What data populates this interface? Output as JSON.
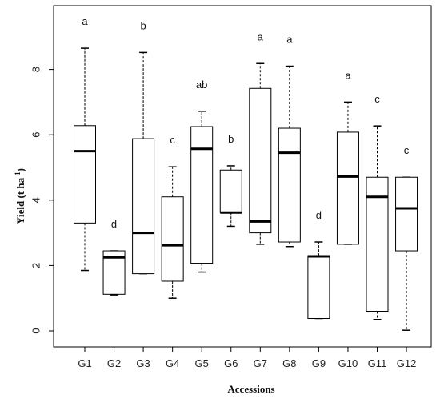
{
  "chart_data": {
    "type": "boxplot",
    "xlabel": "Accessions",
    "ylabel": "Yield (t ha",
    "ylabel_superscript": "-1",
    "ylabel_suffix": ")",
    "ylim": [
      0,
      9.5
    ],
    "yticks": [
      0,
      2,
      4,
      6,
      8
    ],
    "grid": false,
    "categories": [
      "G1",
      "G2",
      "G3",
      "G4",
      "G5",
      "G6",
      "G7",
      "G8",
      "G9",
      "G10",
      "G11",
      "G12"
    ],
    "boxes": [
      {
        "min": 1.85,
        "q1": 3.3,
        "median": 5.5,
        "q3": 6.28,
        "max": 8.65,
        "letter": "a"
      },
      {
        "min": 1.1,
        "q1": 1.12,
        "median": 2.25,
        "q3": 2.45,
        "max": 2.45,
        "letter": "d"
      },
      {
        "min": 1.75,
        "q1": 1.75,
        "median": 3.0,
        "q3": 5.88,
        "max": 8.52,
        "letter": "b"
      },
      {
        "min": 1.0,
        "q1": 1.52,
        "median": 2.62,
        "q3": 4.1,
        "max": 5.02,
        "letter": "c"
      },
      {
        "min": 1.8,
        "q1": 2.07,
        "median": 5.57,
        "q3": 6.25,
        "max": 6.72,
        "letter": "ab"
      },
      {
        "min": 3.2,
        "q1": 3.62,
        "median": 3.62,
        "q3": 4.92,
        "max": 5.05,
        "letter": "b"
      },
      {
        "min": 2.65,
        "q1": 3.0,
        "median": 3.35,
        "q3": 7.42,
        "max": 8.18,
        "letter": "a"
      },
      {
        "min": 2.58,
        "q1": 2.72,
        "median": 5.45,
        "q3": 6.2,
        "max": 8.1,
        "letter": "a"
      },
      {
        "min": 0.38,
        "q1": 0.38,
        "median": 2.28,
        "q3": 2.3,
        "max": 2.72,
        "letter": "d"
      },
      {
        "min": 2.65,
        "q1": 2.65,
        "median": 4.72,
        "q3": 6.08,
        "max": 7.0,
        "letter": "a"
      },
      {
        "min": 0.35,
        "q1": 0.6,
        "median": 4.1,
        "q3": 4.7,
        "max": 6.27,
        "letter": "c"
      },
      {
        "min": 0.02,
        "q1": 2.45,
        "median": 3.75,
        "q3": 4.7,
        "max": 4.7,
        "letter": "c"
      }
    ]
  }
}
